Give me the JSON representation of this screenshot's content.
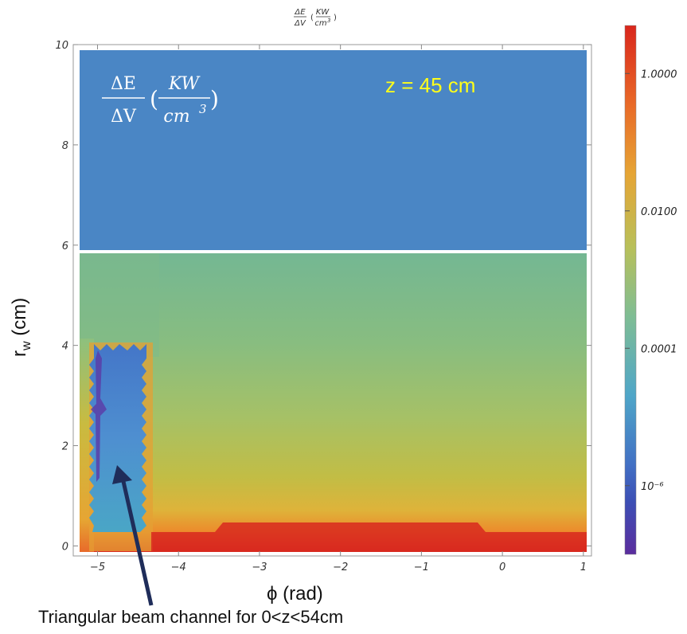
{
  "chart_data": {
    "type": "heatmap",
    "title": "ΔE/ΔV (KW/cm³)",
    "title_parts": {
      "numerator": "ΔE",
      "denominator": "ΔV",
      "unit_num": "KW",
      "unit_den": "cm",
      "unit_exp": "3"
    },
    "xlabel": "ϕ (rad)",
    "ylabel": "r_w (cm)",
    "xlim": [
      -5.3,
      1.1
    ],
    "ylim": [
      -0.2,
      10.0
    ],
    "x_ticks": [
      -5,
      -4,
      -3,
      -2,
      -1,
      0,
      1
    ],
    "x_tick_labels": [
      "−5",
      "−4",
      "−3",
      "−2",
      "−1",
      "0",
      "1"
    ],
    "y_ticks": [
      0,
      2,
      4,
      6,
      8,
      10
    ],
    "y_tick_labels": [
      "0",
      "2",
      "4",
      "6",
      "8",
      "10"
    ],
    "colorbar": {
      "scale": "log",
      "range": [
        1e-07,
        5
      ],
      "tick_values": [
        1,
        0.01,
        0.0001,
        1e-06
      ],
      "tick_labels": [
        "1.0000",
        "0.0100",
        "0.0001",
        "10⁻⁶"
      ],
      "colors": [
        "#5b2d9e",
        "#3d5fc4",
        "#4aa8c8",
        "#86bf8a",
        "#b9c25a",
        "#e0b23a",
        "#ee7a2a",
        "#d9261c"
      ]
    },
    "regions": [
      {
        "name": "upper",
        "r_range": [
          6.0,
          10.0
        ],
        "fill": "#4a86c5",
        "uniform": true
      },
      {
        "name": "beam-channel",
        "phi_range": [
          -5.05,
          -4.35
        ],
        "r_range": [
          0.2,
          4.1
        ],
        "level": 1e-06
      },
      {
        "name": "lower",
        "r_range": [
          0,
          5.95
        ],
        "gradient": "increasing toward r=0"
      }
    ],
    "annotations": {
      "formula": {
        "numerator": "ΔE",
        "denominator": "ΔV",
        "unit_num": "KW",
        "unit_den": "cm",
        "unit_exp": "3"
      },
      "z_label": "z = 45 cm",
      "arrow_caption": "Triangular beam channel for 0<z<54cm"
    }
  }
}
